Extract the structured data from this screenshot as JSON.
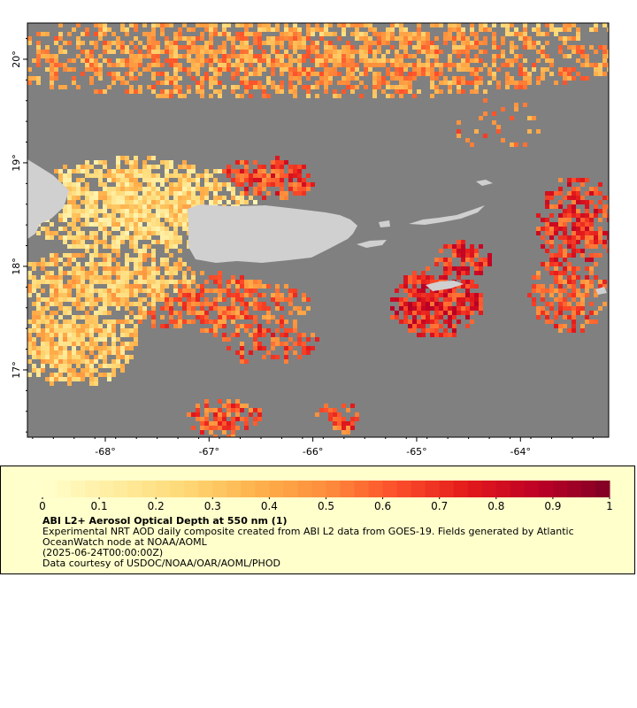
{
  "map": {
    "type": "heatmap",
    "x_ticks": [
      "-68°",
      "-67°",
      "-66°",
      "-65°",
      "-64°"
    ],
    "y_ticks": [
      "20°",
      "19°",
      "18°",
      "17°"
    ],
    "lon_range": [
      -68.75,
      -63.15
    ],
    "lat_range": [
      16.35,
      20.35
    ],
    "colors": {
      "ocean_nodata": "#808080",
      "land": "#d0d0d0",
      "low_aod": "#ffffcc",
      "high_aod": "#800026"
    }
  },
  "legend": {
    "tick_labels": [
      "0",
      "0.1",
      "0.2",
      "0.3",
      "0.4",
      "0.5",
      "0.6",
      "0.7",
      "0.8",
      "0.9",
      "1"
    ],
    "value_range": [
      0,
      1
    ],
    "title": "ABI L2+ Aerosol Optical Depth at 550 nm (1)",
    "description": "Experimental NRT AOD daily composite created from ABI L2 data from GOES-19. Fields generated by Atlantic OceanWatch node at NOAA/AOML",
    "date": "(2025-06-24T00:00:00Z)",
    "credit": "Data courtesy of USDOC/NOAA/OAR/AOML/PHOD"
  }
}
